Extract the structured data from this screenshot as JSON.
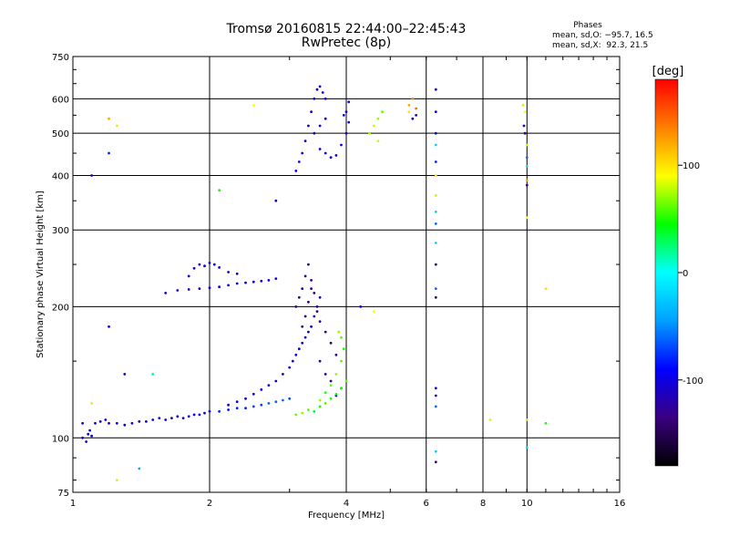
{
  "chart_data": {
    "type": "scatter",
    "title": "Tromsø 20160815 22:44:00–22:45:43",
    "subtitle": "RwPretec (8p)",
    "xlabel": "Frequency [MHz]",
    "ylabel": "Stationary phase Virtual Height [km]",
    "xscale": "log",
    "yscale": "log",
    "xlim": [
      1,
      16
    ],
    "ylim": [
      75,
      750
    ],
    "xticks": [
      1,
      2,
      4,
      6,
      8,
      10,
      16
    ],
    "yticks": [
      75,
      100,
      200,
      300,
      400,
      500,
      600,
      750
    ],
    "grid": true,
    "phases_legend": {
      "title": "Phases",
      "o_line": "mean, sd,O: −95.7, 16.5",
      "x_line": "mean, sd,X:  92.3, 21.5"
    },
    "colorbar": {
      "label": "[deg]",
      "range": [
        -180,
        180
      ],
      "ticks": [
        100,
        0,
        -100
      ],
      "colormap": "rainbow",
      "colors": [
        "#000000",
        "#3a0080",
        "#0000ff",
        "#00a0ff",
        "#00ffff",
        "#00ff00",
        "#ffff00",
        "#ff8000",
        "#ff0000"
      ]
    },
    "series": [
      {
        "points": [
          [
            1.05,
            100,
            -100
          ],
          [
            1.07,
            98,
            -100
          ],
          [
            1.08,
            102,
            -100
          ],
          [
            1.1,
            101,
            -90
          ],
          [
            1.09,
            104,
            -100
          ],
          [
            1.12,
            108,
            -100
          ],
          [
            1.15,
            109,
            -95
          ],
          [
            1.18,
            110,
            -100
          ],
          [
            1.2,
            108,
            -110
          ],
          [
            1.25,
            108,
            -100
          ],
          [
            1.3,
            107,
            -100
          ],
          [
            1.35,
            108,
            -100
          ],
          [
            1.4,
            109,
            -110
          ],
          [
            1.45,
            109,
            -100
          ],
          [
            1.5,
            110,
            -100
          ],
          [
            1.55,
            111,
            -110
          ],
          [
            1.6,
            110,
            -100
          ],
          [
            1.65,
            111,
            -105
          ],
          [
            1.7,
            112,
            -100
          ],
          [
            1.75,
            111,
            -110
          ],
          [
            1.8,
            112,
            -100
          ],
          [
            1.85,
            113,
            -100
          ],
          [
            1.9,
            113,
            -90
          ],
          [
            1.95,
            114,
            -100
          ],
          [
            2.0,
            115,
            -100
          ],
          [
            2.1,
            115,
            -80
          ],
          [
            2.2,
            116,
            -90
          ],
          [
            2.3,
            117,
            -80
          ],
          [
            2.4,
            117,
            -80
          ],
          [
            2.5,
            118,
            -70
          ],
          [
            2.6,
            119,
            -70
          ],
          [
            2.7,
            120,
            -60
          ],
          [
            2.8,
            121,
            -60
          ],
          [
            2.9,
            122,
            -60
          ],
          [
            3.0,
            123,
            -70
          ],
          [
            2.2,
            119,
            -100
          ],
          [
            2.3,
            121,
            -100
          ],
          [
            2.4,
            123,
            -100
          ],
          [
            2.5,
            126,
            -100
          ],
          [
            2.6,
            129,
            -100
          ],
          [
            2.7,
            132,
            -90
          ],
          [
            2.8,
            135,
            -100
          ],
          [
            2.9,
            140,
            -100
          ],
          [
            3.0,
            145,
            -100
          ],
          [
            3.05,
            150,
            -110
          ],
          [
            3.1,
            155,
            -100
          ],
          [
            3.15,
            160,
            -100
          ],
          [
            3.2,
            165,
            -110
          ],
          [
            3.25,
            170,
            -100
          ],
          [
            3.3,
            175,
            -110
          ],
          [
            3.35,
            180,
            -100
          ],
          [
            3.4,
            190,
            -110
          ],
          [
            3.45,
            200,
            -120
          ],
          [
            3.5,
            210,
            -110
          ],
          [
            3.1,
            200,
            -120
          ],
          [
            3.15,
            210,
            -130
          ],
          [
            3.2,
            220,
            -120
          ],
          [
            3.25,
            235,
            -130
          ],
          [
            3.3,
            250,
            -120
          ],
          [
            3.35,
            230,
            -130
          ],
          [
            3.4,
            215,
            -140
          ],
          [
            3.45,
            195,
            -130
          ],
          [
            3.5,
            185,
            -130
          ],
          [
            3.6,
            175,
            -140
          ],
          [
            3.7,
            165,
            -140
          ],
          [
            3.8,
            155,
            -130
          ],
          [
            3.2,
            180,
            -130
          ],
          [
            3.25,
            190,
            -140
          ],
          [
            3.3,
            205,
            -140
          ],
          [
            3.35,
            220,
            -130
          ],
          [
            3.5,
            150,
            -120
          ],
          [
            3.6,
            140,
            -120
          ],
          [
            3.7,
            135,
            -130
          ],
          [
            3.8,
            125,
            -120
          ],
          [
            3.9,
            130,
            -130
          ],
          [
            3.4,
            115,
            40
          ],
          [
            3.5,
            118,
            50
          ],
          [
            3.6,
            120,
            60
          ],
          [
            3.7,
            123,
            50
          ],
          [
            3.8,
            126,
            40
          ],
          [
            3.9,
            130,
            50
          ],
          [
            4.0,
            135,
            60
          ],
          [
            3.5,
            122,
            70
          ],
          [
            3.6,
            127,
            50
          ],
          [
            3.7,
            132,
            60
          ],
          [
            3.8,
            140,
            70
          ],
          [
            3.9,
            150,
            60
          ],
          [
            3.95,
            160,
            50
          ],
          [
            3.9,
            170,
            60
          ],
          [
            3.85,
            175,
            70
          ],
          [
            3.3,
            116,
            60
          ],
          [
            3.2,
            114,
            70
          ],
          [
            3.1,
            113,
            60
          ],
          [
            1.6,
            215,
            -100
          ],
          [
            1.7,
            218,
            -100
          ],
          [
            1.8,
            219,
            -110
          ],
          [
            1.9,
            220,
            -100
          ],
          [
            2.0,
            221,
            -100
          ],
          [
            2.1,
            222,
            -90
          ],
          [
            2.2,
            224,
            -100
          ],
          [
            2.3,
            226,
            -100
          ],
          [
            2.4,
            227,
            -100
          ],
          [
            2.5,
            228,
            -110
          ],
          [
            2.6,
            229,
            -100
          ],
          [
            2.7,
            230,
            -100
          ],
          [
            2.8,
            232,
            -110
          ],
          [
            1.8,
            235,
            -110
          ],
          [
            1.85,
            245,
            -100
          ],
          [
            1.9,
            250,
            -110
          ],
          [
            1.95,
            248,
            -100
          ],
          [
            2.0,
            252,
            -100
          ],
          [
            2.05,
            250,
            -110
          ],
          [
            2.1,
            246,
            -100
          ],
          [
            2.2,
            240,
            -110
          ],
          [
            2.3,
            238,
            -100
          ],
          [
            3.1,
            410,
            -100
          ],
          [
            3.15,
            430,
            -110
          ],
          [
            3.2,
            450,
            -100
          ],
          [
            3.25,
            480,
            -110
          ],
          [
            3.3,
            520,
            -100
          ],
          [
            3.35,
            560,
            -110
          ],
          [
            3.4,
            600,
            -100
          ],
          [
            3.45,
            630,
            -110
          ],
          [
            3.5,
            640,
            -100
          ],
          [
            3.55,
            620,
            -110
          ],
          [
            3.6,
            600,
            -100
          ],
          [
            3.4,
            500,
            -110
          ],
          [
            3.5,
            520,
            -100
          ],
          [
            3.6,
            540,
            -110
          ],
          [
            3.5,
            460,
            -100
          ],
          [
            3.6,
            450,
            -100
          ],
          [
            3.7,
            440,
            -110
          ],
          [
            3.8,
            445,
            -100
          ],
          [
            3.9,
            470,
            -100
          ],
          [
            4.0,
            500,
            -110
          ],
          [
            4.05,
            530,
            -100
          ],
          [
            4.0,
            560,
            -110
          ],
          [
            4.05,
            590,
            -100
          ],
          [
            3.95,
            550,
            -100
          ],
          [
            4.5,
            500,
            70
          ],
          [
            4.6,
            520,
            80
          ],
          [
            4.7,
            540,
            70
          ],
          [
            4.8,
            560,
            60
          ],
          [
            4.7,
            480,
            80
          ],
          [
            5.5,
            580,
            120
          ],
          [
            5.6,
            600,
            130
          ],
          [
            5.7,
            570,
            140
          ],
          [
            5.5,
            560,
            100
          ],
          [
            5.6,
            540,
            -100
          ],
          [
            5.7,
            550,
            -110
          ],
          [
            6.3,
            630,
            -100
          ],
          [
            6.3,
            560,
            -90
          ],
          [
            6.3,
            500,
            -110
          ],
          [
            6.3,
            470,
            -20
          ],
          [
            6.3,
            430,
            -80
          ],
          [
            6.3,
            400,
            100
          ],
          [
            6.3,
            360,
            80
          ],
          [
            6.3,
            330,
            -20
          ],
          [
            6.3,
            310,
            -60
          ],
          [
            6.3,
            280,
            -20
          ],
          [
            6.3,
            250,
            -140
          ],
          [
            6.3,
            220,
            -60
          ],
          [
            6.3,
            210,
            -150
          ],
          [
            6.3,
            130,
            -100
          ],
          [
            6.3,
            125,
            -120
          ],
          [
            6.3,
            118,
            -60
          ],
          [
            6.3,
            93,
            -20
          ],
          [
            6.3,
            88,
            -140
          ],
          [
            9.8,
            580,
            80
          ],
          [
            9.9,
            560,
            90
          ],
          [
            9.85,
            520,
            -110
          ],
          [
            9.9,
            500,
            -130
          ],
          [
            10.0,
            470,
            80
          ],
          [
            10.0,
            440,
            -60
          ],
          [
            10.0,
            420,
            -20
          ],
          [
            10.0,
            390,
            120
          ],
          [
            10.0,
            380,
            -130
          ],
          [
            10.0,
            320,
            90
          ],
          [
            10.0,
            110,
            80
          ],
          [
            10.0,
            95,
            -20
          ],
          [
            11.0,
            108,
            50
          ],
          [
            8.3,
            110,
            80
          ],
          [
            11.0,
            220,
            100
          ],
          [
            1.1,
            400,
            -100
          ],
          [
            1.2,
            450,
            -80
          ],
          [
            1.25,
            520,
            100
          ],
          [
            1.2,
            540,
            120
          ],
          [
            1.2,
            180,
            -100
          ],
          [
            1.3,
            140,
            -110
          ],
          [
            1.5,
            140,
            20
          ],
          [
            1.4,
            85,
            -40
          ],
          [
            1.25,
            80,
            80
          ],
          [
            1.1,
            120,
            100
          ],
          [
            1.05,
            108,
            -100
          ],
          [
            2.1,
            370,
            50
          ],
          [
            2.5,
            580,
            90
          ],
          [
            2.8,
            350,
            -100
          ],
          [
            4.3,
            200,
            -100
          ],
          [
            4.6,
            195,
            90
          ]
        ]
      }
    ]
  }
}
